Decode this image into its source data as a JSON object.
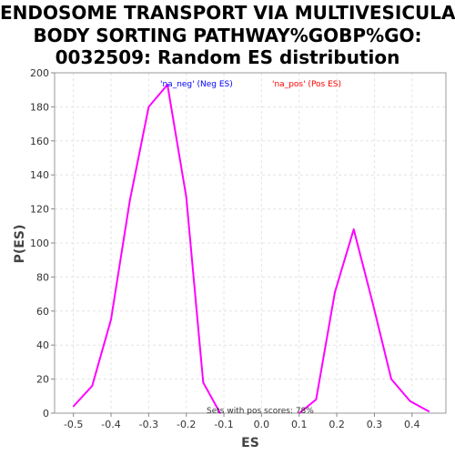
{
  "title_lines": [
    "ENDOSOME TRANSPORT VIA MULTIVESICULAR",
    "BODY SORTING PATHWAY%GOBP%GO:",
    "0032509: Random ES distribution"
  ],
  "chart_data": {
    "type": "line",
    "xlabel": "ES",
    "ylabel": "P(ES)",
    "xlim": [
      -0.55,
      0.49
    ],
    "ylim": [
      0,
      200
    ],
    "xticks": [
      -0.5,
      -0.4,
      -0.3,
      -0.2,
      -0.1,
      0.0,
      0.1,
      0.2,
      0.3,
      0.4
    ],
    "xtick_labels": [
      "-0.5",
      "-0.4",
      "-0.3",
      "-0.2",
      "-0.1",
      "0.0",
      "0.1",
      "0.2",
      "0.3",
      "0.4"
    ],
    "yticks": [
      0,
      20,
      40,
      60,
      80,
      100,
      120,
      140,
      160,
      180,
      200
    ],
    "ytick_labels": [
      "0",
      "20",
      "40",
      "60",
      "80",
      "100",
      "120",
      "140",
      "160",
      "180",
      "200"
    ],
    "grid": true,
    "series": [
      {
        "color": "#ff00ff",
        "segments": [
          {
            "x": [
              -0.5,
              -0.45,
              -0.4,
              -0.35,
              -0.3,
              -0.25,
              -0.2,
              -0.155,
              -0.11
            ],
            "y": [
              4,
              16,
              55,
              125,
              180,
              193,
              127,
              18,
              0
            ]
          },
          {
            "x": [
              0.1,
              0.145,
              0.195,
              0.245,
              0.295,
              0.345,
              0.395,
              0.445
            ],
            "y": [
              0,
              8,
              71,
              108,
              65,
              20,
              7,
              1
            ]
          }
        ]
      }
    ],
    "legend": [
      {
        "label": "'na_neg' (Neg ES)",
        "color": "#0000ff"
      },
      {
        "label": "'na_pos' (Pos ES)",
        "color": "#ff0000"
      }
    ],
    "annotation": "Sets with pos scores: 78%"
  }
}
